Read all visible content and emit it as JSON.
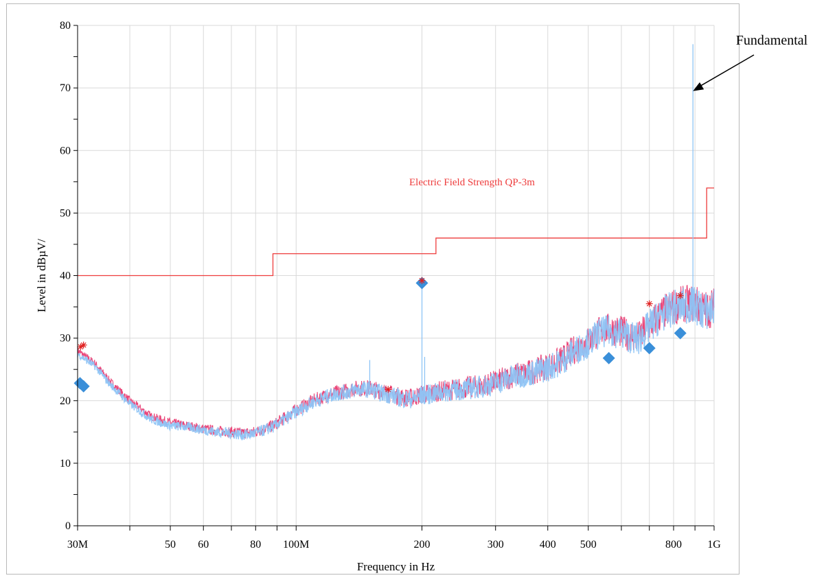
{
  "chart_data": {
    "type": "line",
    "xlabel": "Frequency in Hz",
    "ylabel": "Level in dBµV/",
    "x_scale": "log",
    "xlim": [
      30000000,
      1000000000
    ],
    "ylim": [
      0,
      80
    ],
    "grid": true,
    "y_ticks": [
      0,
      10,
      20,
      30,
      40,
      50,
      60,
      70,
      80
    ],
    "x_ticks": [
      {
        "value": 30000000,
        "label": "30M"
      },
      {
        "value": 50000000,
        "label": "50"
      },
      {
        "value": 60000000,
        "label": "60"
      },
      {
        "value": 80000000,
        "label": "80"
      },
      {
        "value": 100000000,
        "label": "100M"
      },
      {
        "value": 200000000,
        "label": "200"
      },
      {
        "value": 300000000,
        "label": "300"
      },
      {
        "value": 400000000,
        "label": "400"
      },
      {
        "value": 500000000,
        "label": "500"
      },
      {
        "value": 800000000,
        "label": "800"
      },
      {
        "value": 1000000000,
        "label": "1G"
      }
    ],
    "x_minor_ticks": [
      40000000,
      70000000,
      90000000,
      600000000,
      700000000,
      900000000
    ],
    "limit_line": {
      "label": "Electric Field Strength QP-3m",
      "color": "#ee3b3b",
      "steps": [
        {
          "x": 30000000,
          "y": 40.0
        },
        {
          "x": 88000000,
          "y": 40.0
        },
        {
          "x": 88000000,
          "y": 43.5
        },
        {
          "x": 216000000,
          "y": 43.5
        },
        {
          "x": 216000000,
          "y": 46.0
        },
        {
          "x": 960000000,
          "y": 46.0
        },
        {
          "x": 960000000,
          "y": 54.0
        },
        {
          "x": 1000000000,
          "y": 54.0
        }
      ]
    },
    "series": [
      {
        "color": "#e8336b",
        "points": [
          [
            30000000,
            28.0
          ],
          [
            33000000,
            26.0
          ],
          [
            36000000,
            23.0
          ],
          [
            40000000,
            20.0
          ],
          [
            45000000,
            17.5
          ],
          [
            50000000,
            16.5
          ],
          [
            55000000,
            16.0
          ],
          [
            60000000,
            15.5
          ],
          [
            65000000,
            15.2
          ],
          [
            70000000,
            15.0
          ],
          [
            75000000,
            14.8
          ],
          [
            80000000,
            15.0
          ],
          [
            88000000,
            16.0
          ],
          [
            95000000,
            17.5
          ],
          [
            100000000,
            18.5
          ],
          [
            110000000,
            20.0
          ],
          [
            120000000,
            21.0
          ],
          [
            130000000,
            21.5
          ],
          [
            140000000,
            22.0
          ],
          [
            150000000,
            22.0
          ],
          [
            160000000,
            21.5
          ],
          [
            170000000,
            21.0
          ],
          [
            180000000,
            20.5
          ],
          [
            190000000,
            20.5
          ],
          [
            200000000,
            21.0
          ],
          [
            220000000,
            21.5
          ],
          [
            250000000,
            22.0
          ],
          [
            280000000,
            22.5
          ],
          [
            300000000,
            23.0
          ],
          [
            330000000,
            24.0
          ],
          [
            360000000,
            24.5
          ],
          [
            400000000,
            25.5
          ],
          [
            430000000,
            26.5
          ],
          [
            460000000,
            28.0
          ],
          [
            500000000,
            29.5
          ],
          [
            530000000,
            31.0
          ],
          [
            560000000,
            31.5
          ],
          [
            600000000,
            31.0
          ],
          [
            630000000,
            30.5
          ],
          [
            660000000,
            30.0
          ],
          [
            700000000,
            32.0
          ],
          [
            750000000,
            34.0
          ],
          [
            800000000,
            35.0
          ],
          [
            850000000,
            35.5
          ],
          [
            900000000,
            35.5
          ],
          [
            950000000,
            34.5
          ],
          [
            1000000000,
            35.0
          ]
        ]
      },
      {
        "color": "#8ec4f5",
        "points": [
          [
            30000000,
            27.5
          ],
          [
            33000000,
            25.5
          ],
          [
            36000000,
            22.5
          ],
          [
            40000000,
            19.5
          ],
          [
            45000000,
            17.0
          ],
          [
            50000000,
            16.0
          ],
          [
            55000000,
            15.8
          ],
          [
            60000000,
            15.3
          ],
          [
            65000000,
            15.0
          ],
          [
            70000000,
            14.8
          ],
          [
            75000000,
            14.5
          ],
          [
            80000000,
            14.8
          ],
          [
            88000000,
            15.8
          ],
          [
            95000000,
            17.2
          ],
          [
            100000000,
            18.2
          ],
          [
            110000000,
            19.8
          ],
          [
            120000000,
            20.8
          ],
          [
            130000000,
            21.3
          ],
          [
            140000000,
            21.8
          ],
          [
            150000000,
            21.8
          ],
          [
            160000000,
            21.2
          ],
          [
            170000000,
            20.8
          ],
          [
            180000000,
            20.3
          ],
          [
            190000000,
            20.3
          ],
          [
            200000000,
            20.8
          ],
          [
            220000000,
            21.3
          ],
          [
            250000000,
            21.8
          ],
          [
            280000000,
            22.3
          ],
          [
            300000000,
            22.8
          ],
          [
            330000000,
            23.8
          ],
          [
            360000000,
            24.3
          ],
          [
            400000000,
            25.2
          ],
          [
            430000000,
            26.2
          ],
          [
            460000000,
            27.8
          ],
          [
            500000000,
            29.2
          ],
          [
            530000000,
            30.8
          ],
          [
            560000000,
            31.2
          ],
          [
            600000000,
            30.8
          ],
          [
            630000000,
            30.2
          ],
          [
            660000000,
            29.8
          ],
          [
            700000000,
            31.8
          ],
          [
            750000000,
            33.8
          ],
          [
            800000000,
            34.8
          ],
          [
            850000000,
            35.2
          ],
          [
            900000000,
            35.2
          ],
          [
            950000000,
            34.2
          ],
          [
            1000000000,
            34.8
          ]
        ],
        "spikes": [
          {
            "x": 150000000,
            "y": 26.5
          },
          {
            "x": 200000000,
            "y": 39.0
          },
          {
            "x": 203000000,
            "y": 27.0
          },
          {
            "x": 890000000,
            "y": 77.0
          }
        ]
      }
    ],
    "peak_markers": [
      {
        "x": 30500000,
        "y": 28.6
      },
      {
        "x": 31000000,
        "y": 28.9
      },
      {
        "x": 200000000,
        "y": 39.2
      },
      {
        "x": 700000000,
        "y": 35.5
      },
      {
        "x": 166000000,
        "y": 21.8
      },
      {
        "x": 830000000,
        "y": 36.8
      }
    ],
    "qp_markers": [
      {
        "x": 30400000,
        "y": 22.8
      },
      {
        "x": 31000000,
        "y": 22.3
      },
      {
        "x": 200000000,
        "y": 38.8
      },
      {
        "x": 560000000,
        "y": 26.8
      },
      {
        "x": 700000000,
        "y": 28.4
      },
      {
        "x": 830000000,
        "y": 30.8
      }
    ],
    "annotations": [
      {
        "text": "Fundamental",
        "points_to": {
          "x": 890000000,
          "y": 69.5
        }
      }
    ],
    "colors": {
      "limit": "#ee3b3b",
      "trace_pk": "#e8336b",
      "trace_avg": "#8ec4f5",
      "peak_marker": "#e02020",
      "qp_marker": "#3a8fd9",
      "grid": "#d9d9d9"
    }
  }
}
